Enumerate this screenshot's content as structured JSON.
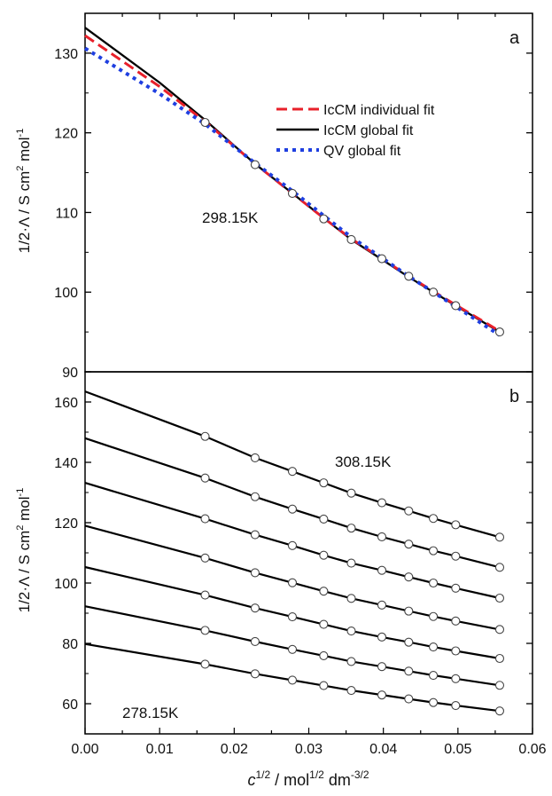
{
  "chart_data": [
    {
      "panel_label": "a",
      "type": "line",
      "xlim": [
        0,
        0.06
      ],
      "ylim": [
        90,
        135
      ],
      "yticks": [
        90,
        100,
        110,
        120,
        130
      ],
      "ylabel_prefix": "1/2·Λ / S cm",
      "ylabel_sup1": "2",
      "ylabel_mid": " mol",
      "ylabel_sup2": "-1",
      "annotation": "298.15K",
      "legend": [
        "IcCM individual fit",
        "IcCM global fit",
        "QV global fit"
      ],
      "legend_position": "top-right",
      "colors": {
        "individual": "#e8202a",
        "global": "#000000",
        "qv": "#1f3fe0"
      },
      "points": {
        "x": [
          0.0161,
          0.0228,
          0.0278,
          0.032,
          0.0357,
          0.0398,
          0.0434,
          0.0467,
          0.0497,
          0.0556
        ],
        "y": [
          121.3,
          116.0,
          112.4,
          109.2,
          106.6,
          104.2,
          102.0,
          100.0,
          98.3,
          95.0
        ]
      },
      "series": [
        {
          "name": "IcCM individual fit",
          "style": "dashed",
          "x": [
            0,
            0.01,
            0.0161,
            0.0228,
            0.0278,
            0.032,
            0.0357,
            0.0398,
            0.0434,
            0.0467,
            0.0497,
            0.0556
          ],
          "y": [
            132.2,
            125.8,
            121.4,
            116.1,
            112.4,
            109.3,
            106.7,
            104.2,
            102.0,
            100.1,
            98.4,
            95.1
          ]
        },
        {
          "name": "IcCM global fit",
          "style": "solid",
          "x": [
            0,
            0.01,
            0.0161,
            0.0228,
            0.0278,
            0.032,
            0.0357,
            0.0398,
            0.0434,
            0.0467,
            0.0497,
            0.0556
          ],
          "y": [
            133.2,
            126.3,
            121.6,
            116.1,
            112.4,
            109.3,
            106.6,
            104.1,
            101.9,
            100.0,
            98.3,
            95.0
          ]
        },
        {
          "name": "QV global fit",
          "style": "dotted",
          "x": [
            0,
            0.01,
            0.0161,
            0.0228,
            0.0278,
            0.032,
            0.0357,
            0.0398,
            0.0434,
            0.0467,
            0.0497,
            0.0556
          ],
          "y": [
            130.6,
            124.9,
            121.1,
            116.2,
            112.7,
            109.6,
            106.9,
            104.3,
            102.0,
            100.0,
            98.2,
            94.6
          ]
        }
      ]
    },
    {
      "panel_label": "b",
      "type": "line",
      "xlim": [
        0,
        0.06
      ],
      "xticks": [
        "0.00",
        "0.01",
        "0.02",
        "0.03",
        "0.04",
        "0.05",
        "0.06"
      ],
      "ylim": [
        50,
        170
      ],
      "yticks": [
        60,
        80,
        100,
        120,
        140,
        160
      ],
      "ylabel_prefix": "1/2·Λ / S cm",
      "ylabel_sup1": "2",
      "ylabel_mid": " mol",
      "ylabel_sup2": "-1",
      "annotation_top": "308.15K",
      "annotation_bottom": "278.15K",
      "x": [
        0,
        0.0161,
        0.0228,
        0.0278,
        0.032,
        0.0357,
        0.0398,
        0.0434,
        0.0467,
        0.0497,
        0.0556
      ],
      "series": [
        {
          "y": [
            163.5,
            148.6,
            141.5,
            137.0,
            133.2,
            129.8,
            126.6,
            123.9,
            121.4,
            119.3,
            115.2
          ]
        },
        {
          "y": [
            148.0,
            134.8,
            128.6,
            124.5,
            121.2,
            118.2,
            115.3,
            112.9,
            110.7,
            108.9,
            105.2
          ]
        },
        {
          "y": [
            133.2,
            121.3,
            116.0,
            112.4,
            109.2,
            106.6,
            104.2,
            102.0,
            100.0,
            98.3,
            95.0
          ]
        },
        {
          "y": [
            119.0,
            108.3,
            103.4,
            100.1,
            97.3,
            94.9,
            92.7,
            90.7,
            88.9,
            87.4,
            84.6
          ]
        },
        {
          "y": [
            105.3,
            96.0,
            91.7,
            88.8,
            86.3,
            84.1,
            82.1,
            80.4,
            78.8,
            77.5,
            75.0
          ]
        },
        {
          "y": [
            92.3,
            84.3,
            80.6,
            78.0,
            75.9,
            74.0,
            72.3,
            70.8,
            69.4,
            68.3,
            66.1
          ]
        },
        {
          "y": [
            79.8,
            73.1,
            69.9,
            67.8,
            66.0,
            64.4,
            62.9,
            61.6,
            60.4,
            59.4,
            57.6
          ]
        }
      ]
    }
  ],
  "xlabel_main": "c",
  "xlabel_sup1": "1/2",
  "xlabel_mid": " / mol",
  "xlabel_sup2": "1/2",
  "xlabel_mid2": " dm",
  "xlabel_sup3": "-3/2"
}
